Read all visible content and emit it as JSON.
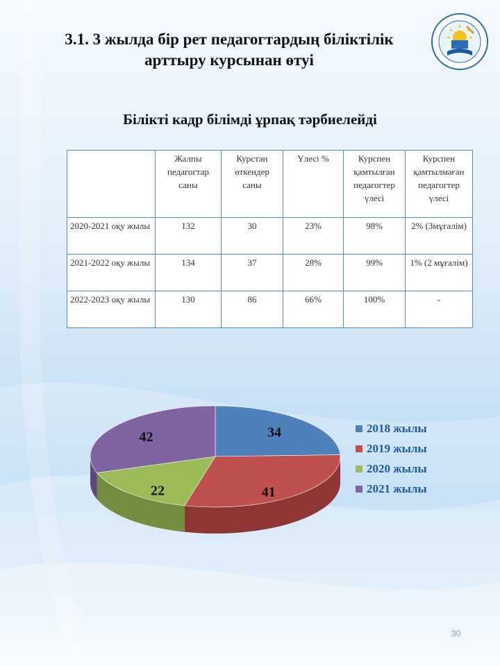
{
  "title": {
    "line1": "3.1. 3 жылда бір рет педагогтардың біліктілік",
    "line2": "арттыру курсынан өтуі"
  },
  "motto": "Білікті кадр  білімді ұрпақ тәрбиелейді",
  "logo": {
    "icon": "school-emblem-icon"
  },
  "table": {
    "headers": [
      "",
      "Жалпы педагогтар саны",
      "Курстан өткендер саны",
      "Үлесі %",
      "Курспен қамтылған педагогтер үлесі",
      "Курспен қамтылмаған педагогтер үлесі"
    ],
    "rows": [
      [
        "2020-2021 оқу жылы",
        "132",
        "30",
        "23%",
        "98%",
        "2% (3мұғалім)"
      ],
      [
        "2021-2022  оқу жылы",
        "134",
        "37",
        "28%",
        "99%",
        "1% (2 мұғалім)"
      ],
      [
        "2022-2023 оқу жылы",
        "130",
        "86",
        "66%",
        "100%",
        "-"
      ]
    ]
  },
  "chart_data": {
    "type": "pie",
    "categories": [
      "2018 жылы",
      "2019 жылы",
      "2020 жылы",
      "2021 жылы"
    ],
    "values": [
      34,
      41,
      22,
      42
    ],
    "colors": [
      "#4f81bd",
      "#c0504d",
      "#9bbb59",
      "#8064a2"
    ],
    "data_labels": [
      "34",
      "41",
      "22",
      "42"
    ],
    "legend_position": "right",
    "style": "3d-tilted"
  },
  "page_number": "30"
}
